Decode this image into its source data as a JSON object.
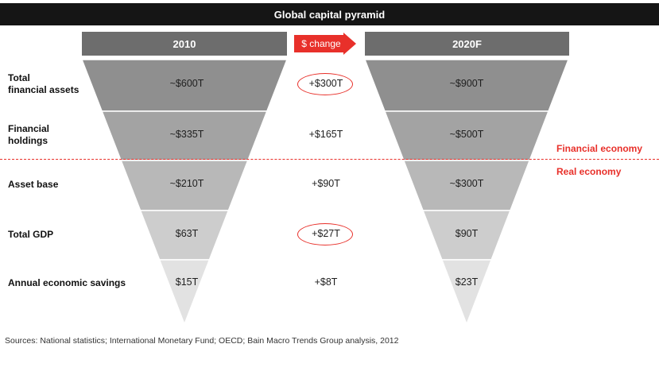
{
  "title": "Global capital pyramid",
  "columns": {
    "left_year": "2010",
    "change_label": "$ change",
    "right_year": "2020F"
  },
  "rows": [
    {
      "label": "Total\nfinancial assets",
      "v2010": "~$600T",
      "change": "+$300T",
      "v2020": "~$900T",
      "circled": true
    },
    {
      "label": "Financial\nholdings",
      "v2010": "~$335T",
      "change": "+$165T",
      "v2020": "~$500T",
      "circled": false
    },
    {
      "label": "Asset base",
      "v2010": "~$210T",
      "change": "+$90T",
      "v2020": "~$300T",
      "circled": false
    },
    {
      "label": "Total GDP",
      "v2010": "$63T",
      "change": "+$27T",
      "v2020": "$90T",
      "circled": true
    },
    {
      "label": "Annual economic savings",
      "v2010": "$15T",
      "change": "+$8T",
      "v2020": "$23T",
      "circled": false
    }
  ],
  "economy_labels": {
    "financial": "Financial economy",
    "real": "Real economy"
  },
  "source": "Sources: National statistics; International Monetary Fund; OECD; Bain Macro Trends Group analysis, 2012",
  "colors": {
    "accent": "#e8302a",
    "header": "#6d6d6d",
    "title_bar": "#151515",
    "band_shades": [
      "#8f8f8f",
      "#a3a3a3",
      "#b8b8b8",
      "#cdcdcd",
      "#e2e2e2"
    ]
  }
}
